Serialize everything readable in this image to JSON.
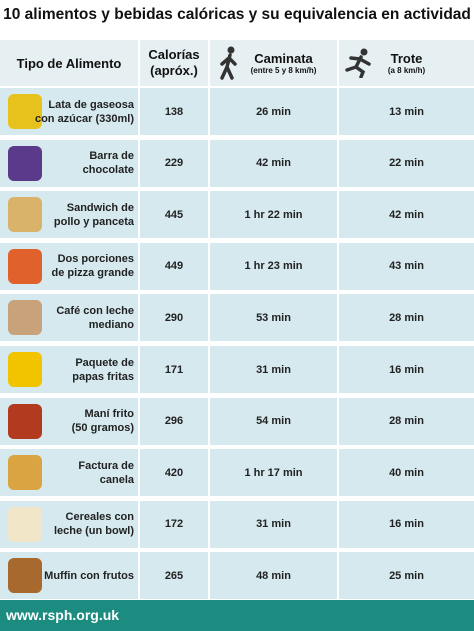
{
  "title": "10 alimentos y bebidas calóricas y su equivalencia en actividad",
  "header": {
    "food": "Tipo de Alimento",
    "calories": [
      "Calorías",
      "(apróx.)"
    ],
    "walk": "Caminata",
    "walk_sub": "(entre 5 y 8 km/h)",
    "run": "Trote",
    "run_sub": "(a 8 km/h)"
  },
  "rows": [
    {
      "name": [
        "Lata de gaseosa",
        "con azúcar (330ml)"
      ],
      "calories": 138,
      "walk": "26 min",
      "run": "13 min"
    },
    {
      "name": [
        "Barra de",
        "chocolate"
      ],
      "calories": 229,
      "walk": "42 min",
      "run": "22 min"
    },
    {
      "name": [
        "Sandwich de",
        "pollo y panceta"
      ],
      "calories": 445,
      "walk": "1 hr 22 min",
      "run": "42 min"
    },
    {
      "name": [
        "Dos porciones",
        "de pizza grande"
      ],
      "calories": 449,
      "walk": "1 hr 23 min",
      "run": "43 min"
    },
    {
      "name": [
        "Café con leche",
        "mediano"
      ],
      "calories": 290,
      "walk": "53 min",
      "run": "28 min"
    },
    {
      "name": [
        "Paquete de",
        "papas fritas"
      ],
      "calories": 171,
      "walk": "31 min",
      "run": "16 min"
    },
    {
      "name": [
        "Maní frito",
        "(50 gramos)"
      ],
      "calories": 296,
      "walk": "54 min",
      "run": "28 min"
    },
    {
      "name": [
        "Factura de",
        "canela"
      ],
      "calories": 420,
      "walk": "1 hr 17 min",
      "run": "40 min"
    },
    {
      "name": [
        "Cereales con",
        "leche (un bowl)"
      ],
      "calories": 172,
      "walk": "31 min",
      "run": "16 min"
    },
    {
      "name": [
        "Muffin con frutos"
      ],
      "calories": 265,
      "walk": "48 min",
      "run": "25 min"
    }
  ],
  "footer": "www.rsph.org.uk"
}
